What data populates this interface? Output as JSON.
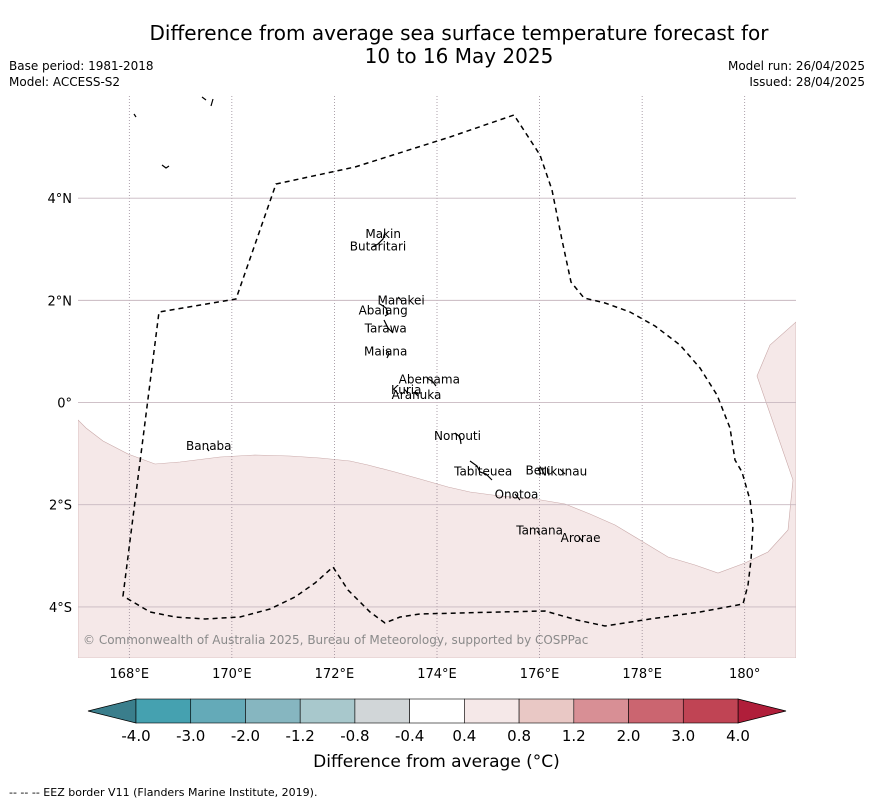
{
  "title_line1": "Difference from average sea surface temperature forecast for",
  "title_line2": "10 to 16 May 2025",
  "meta_left": [
    "Base period: 1981-2018",
    "Model: ACCESS-S2"
  ],
  "meta_right": [
    "Model run: 26/04/2025",
    "Issued: 28/04/2025"
  ],
  "map": {
    "lon_ticks": [
      {
        "lon": 168,
        "label": "168°E"
      },
      {
        "lon": 170,
        "label": "170°E"
      },
      {
        "lon": 172,
        "label": "172°E"
      },
      {
        "lon": 174,
        "label": "174°E"
      },
      {
        "lon": 176,
        "label": "176°E"
      },
      {
        "lon": 178,
        "label": "178°E"
      },
      {
        "lon": 180,
        "label": "180°"
      }
    ],
    "lat_ticks": [
      {
        "lat": 4,
        "label": "4°N"
      },
      {
        "lat": 2,
        "label": "2°N"
      },
      {
        "lat": 0,
        "label": "0°"
      },
      {
        "lat": -2,
        "label": "2°S"
      },
      {
        "lat": -4,
        "label": "4°S"
      }
    ],
    "lon_range": [
      167,
      181
    ],
    "lat_range": [
      -5,
      6
    ],
    "islands": [
      {
        "name": "Makin",
        "lon": 172.95,
        "lat": 3.3
      },
      {
        "name": "Butaritari",
        "lon": 172.85,
        "lat": 3.05
      },
      {
        "name": "Marakei",
        "lon": 173.3,
        "lat": 2.0
      },
      {
        "name": "Abaiang",
        "lon": 172.95,
        "lat": 1.8
      },
      {
        "name": "Tarawa",
        "lon": 173.0,
        "lat": 1.45
      },
      {
        "name": "Maiana",
        "lon": 173.0,
        "lat": 1.0
      },
      {
        "name": "Abemama",
        "lon": 173.85,
        "lat": 0.45
      },
      {
        "name": "Kuria",
        "lon": 173.4,
        "lat": 0.25
      },
      {
        "name": "Aranuka",
        "lon": 173.6,
        "lat": 0.15
      },
      {
        "name": "Nonouti",
        "lon": 174.4,
        "lat": -0.65
      },
      {
        "name": "Tabiteuea",
        "lon": 174.9,
        "lat": -1.35
      },
      {
        "name": "Beru",
        "lon": 176.0,
        "lat": -1.33
      },
      {
        "name": "Nikunau",
        "lon": 176.45,
        "lat": -1.35
      },
      {
        "name": "Onotoa",
        "lon": 175.55,
        "lat": -1.8
      },
      {
        "name": "Tamana",
        "lon": 176.0,
        "lat": -2.5
      },
      {
        "name": "Arorae",
        "lon": 176.8,
        "lat": -2.65
      },
      {
        "name": "Banaba",
        "lon": 169.55,
        "lat": -0.85
      }
    ],
    "copyright": "© Commonwealth of Australia 2025, Bureau of Meteorology, supported by COSPPac",
    "colors": {
      "grid": "#c8b8c0",
      "warm_fill": "#f5e8e8",
      "eez": "#000000"
    }
  },
  "colorbar": {
    "ticks": [
      "-4.0",
      "-3.0",
      "-2.0",
      "-1.2",
      "-0.8",
      "-0.4",
      "0.4",
      "0.8",
      "1.2",
      "2.0",
      "3.0",
      "4.0"
    ],
    "colors": [
      "#45a1b0",
      "#64aab8",
      "#86b6c0",
      "#a8c8cc",
      "#d1d6d8",
      "#ffffff",
      "#f5e8e8",
      "#e9c8c5",
      "#d88f95",
      "#cb6570",
      "#c04454"
    ],
    "under_color": "#3a7e8c",
    "over_color": "#b01e3a",
    "label": "Difference from average ($^\\circ$C)",
    "label_display": "Difference from average (°C)"
  },
  "footer": "--  --  -- EEZ border V11 (Flanders Marine Institute, 2019)."
}
